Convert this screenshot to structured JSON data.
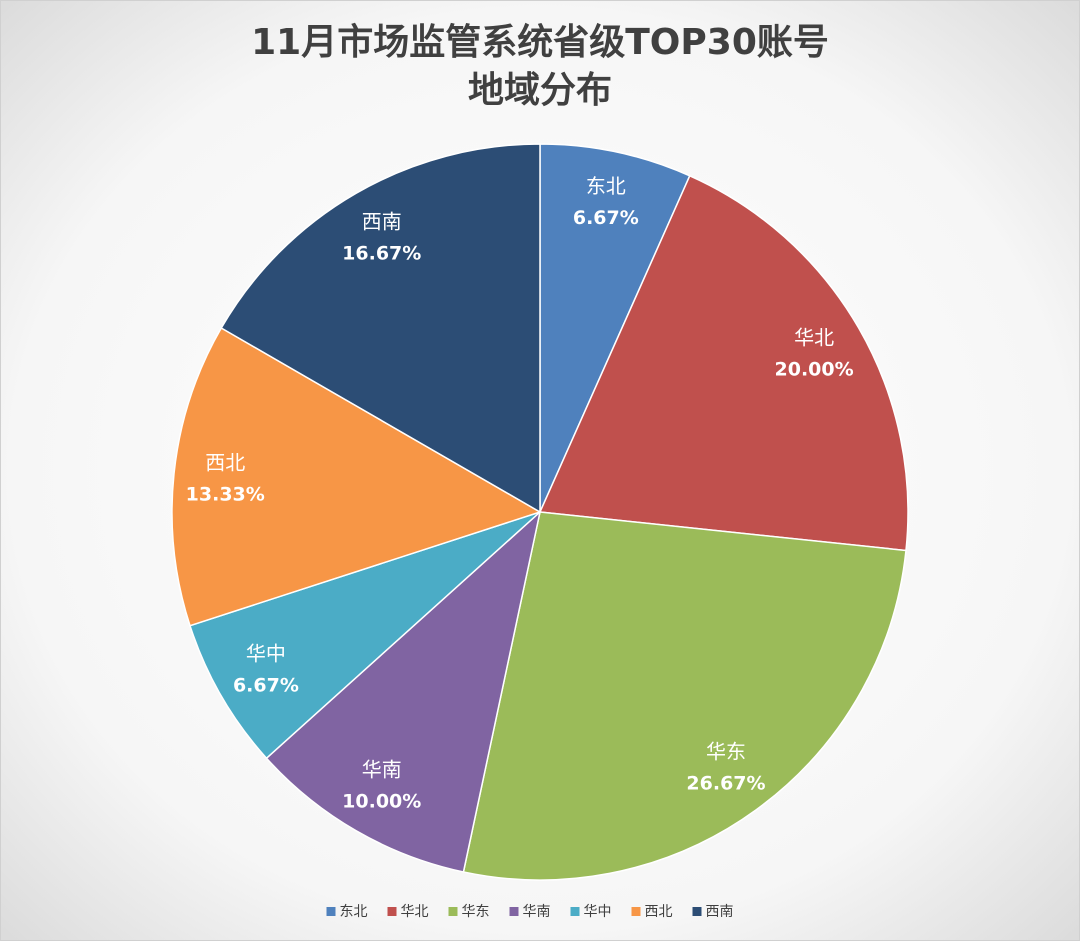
{
  "chart_data": {
    "type": "pie",
    "title": [
      "11月市场监管系统省级TOP30账号",
      "地域分布"
    ],
    "categories": [
      "东北",
      "华北",
      "华东",
      "华南",
      "华中",
      "西北",
      "西南"
    ],
    "values": [
      6.67,
      20.0,
      26.67,
      10.0,
      6.67,
      13.33,
      16.67
    ],
    "value_labels": [
      "6.67%",
      "20.00%",
      "26.67%",
      "10.00%",
      "6.67%",
      "13.33%",
      "16.67%"
    ],
    "colors": [
      "#4f81bd",
      "#c0504d",
      "#9bbb59",
      "#8064a2",
      "#4bacc6",
      "#f79646",
      "#2c4d75"
    ],
    "legend": "bottom"
  }
}
